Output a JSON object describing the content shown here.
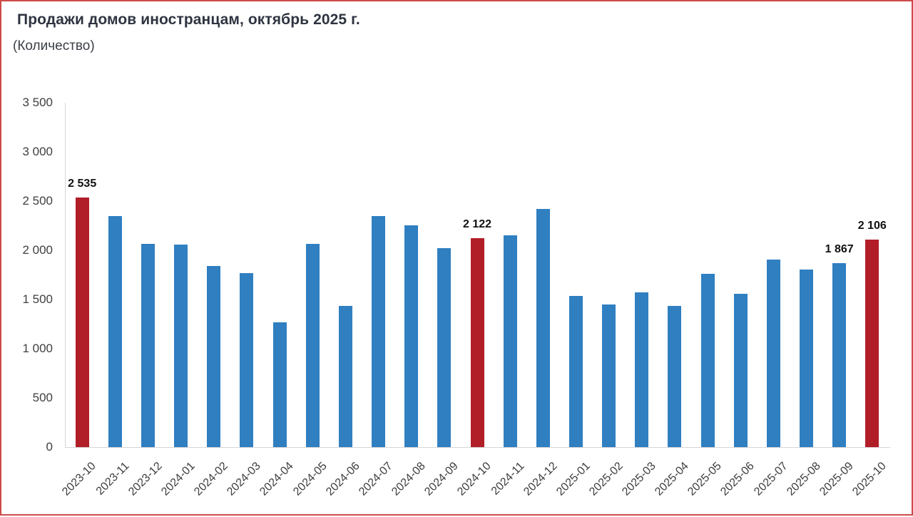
{
  "header": {
    "title": "Продажи домов иностранцам, октябрь 2025 г.",
    "subtitle": "(Количество)"
  },
  "chart_data": {
    "type": "bar",
    "title": "Продажи домов иностранцам, октябрь 2025 г.",
    "subtitle": "(Количество)",
    "xlabel": "",
    "ylabel": "",
    "ylim": [
      0,
      3500
    ],
    "ytick_step": 500,
    "ytick_labels": [
      "3 500",
      "3 000",
      "2 500",
      "2 000",
      "1 500",
      "1 000",
      "500",
      "0"
    ],
    "grid": false,
    "legend": false,
    "categories": [
      "2023-10",
      "2023-11",
      "2023-12",
      "2024-01",
      "2024-02",
      "2024-03",
      "2024-04",
      "2024-05",
      "2024-06",
      "2024-07",
      "2024-08",
      "2024-09",
      "2024-10",
      "2024-11",
      "2024-12",
      "2025-01",
      "2025-02",
      "2025-03",
      "2025-04",
      "2025-05",
      "2025-06",
      "2025-07",
      "2025-08",
      "2025-09",
      "2025-10"
    ],
    "values": [
      2535,
      2345,
      2062,
      2060,
      1840,
      1772,
      1270,
      2062,
      1438,
      2345,
      2256,
      2024,
      2122,
      2152,
      2420,
      1540,
      1450,
      1570,
      1436,
      1764,
      1558,
      1904,
      1808,
      1867,
      2106
    ],
    "highlighted_categories": [
      "2023-10",
      "2024-10",
      "2025-10"
    ],
    "data_labels": {
      "2023-10": "2 535",
      "2024-10": "2 122",
      "2025-09": "1 867",
      "2025-10": "2 106"
    },
    "colors": {
      "bar": "#2f7fc1",
      "highlight": "#b21e28",
      "axis_line": "#d6d6d6",
      "tick_text": "#404040",
      "label_text": "#111111",
      "frame_border": "#cf4a4a"
    }
  }
}
